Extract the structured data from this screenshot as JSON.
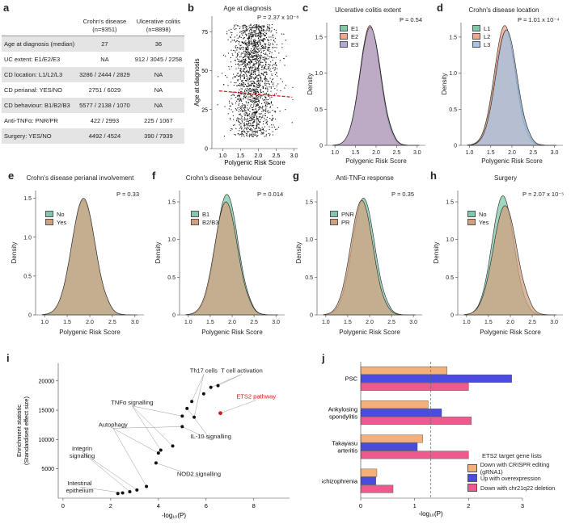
{
  "panels": {
    "a": {
      "letter": "a",
      "table": {
        "headers": [
          "",
          "Crohn's disease\n(n=9351)",
          "Ulcerative colitis\n(n=8898)"
        ],
        "header_lines": [
          [
            "Crohn's disease",
            "(n=9351)"
          ],
          [
            "Ulcerative colitis",
            "(n=8898)"
          ]
        ],
        "rows": [
          [
            "Age at diagnosis (median)",
            "27",
            "36"
          ],
          [
            "UC extent: E1/E2/E3",
            "NA",
            "912 / 3045 / 2258"
          ],
          [
            "CD location: L1/L2/L3",
            "3286 / 2444 / 2829",
            "NA"
          ],
          [
            "CD perianal: YES/NO",
            "2751 / 6029",
            "NA"
          ],
          [
            "CD behaviour: B1/B2/B3",
            "5577 / 2138 / 1070",
            "NA"
          ],
          [
            "Anti-TNFα: PNR/PR",
            "422 / 2993",
            "225 / 1067"
          ],
          [
            "Surgery: YES/NO",
            "4492 / 4524",
            "390 / 7939"
          ]
        ]
      }
    },
    "b": {
      "letter": "b",
      "title": "Age at diagnosis",
      "pvalue": "P = 2.37 x 10⁻⁸",
      "xlabel": "Polygenic Risk Score",
      "ylabel": "Age at diagnosis"
    },
    "c": {
      "letter": "c",
      "title": "Ulcerative colitis extent",
      "pvalue": "P = 0.54",
      "xlabel": "Polygenic Risk Score",
      "ylabel": "Density",
      "legend": [
        "E1",
        "E2",
        "E3"
      ]
    },
    "d": {
      "letter": "d",
      "title": "Crohn's disease location",
      "pvalue": "P = 1.01 x 10⁻⁴",
      "xlabel": "Polygenic Risk Score",
      "ylabel": "Density",
      "legend": [
        "L1",
        "L2",
        "L3"
      ]
    },
    "e": {
      "letter": "e",
      "title": "Crohn's disease perianal involvement",
      "pvalue": "P = 0.33",
      "xlabel": "Polygenic Risk Score",
      "ylabel": "Density",
      "legend": [
        "No",
        "Yes"
      ]
    },
    "f": {
      "letter": "f",
      "title": "Crohn's disease behaviour",
      "pvalue": "P = 0.014",
      "xlabel": "Polygenic Risk Score",
      "ylabel": "Density",
      "legend": [
        "B1",
        "B2/B3"
      ]
    },
    "g": {
      "letter": "g",
      "title": "Anti-TNFα response",
      "pvalue": "P = 0.35",
      "xlabel": "Polygenic Risk Score",
      "ylabel": "Density",
      "legend": [
        "PNR",
        "PR"
      ]
    },
    "h": {
      "letter": "h",
      "title": "Surgery",
      "pvalue": "P = 2.07 x 10⁻⁵",
      "xlabel": "Polygenic Risk Score",
      "ylabel": "Density",
      "legend": [
        "No",
        "Yes"
      ]
    },
    "i": {
      "letter": "i",
      "xlabel": "-log₁₀(P)",
      "ylabel": "Enrichment statistic\n(Standardised effect size)",
      "ylabel_lines": [
        "Enrichment statistic",
        "(Standardised effect size)"
      ]
    },
    "j": {
      "letter": "j",
      "xlabel": "-log₁₀(P)",
      "legend_title": "ETS2 target gene lists"
    }
  },
  "colors": {
    "green": "#7fc8a9",
    "orange": "#f0a78a",
    "purple": "#b3a8d4",
    "blue": "#a9c2e6",
    "tan": "#cfa17f",
    "red": "#d11a1a",
    "bar_orange": "#f3b07a",
    "bar_blue": "#4b4be0",
    "bar_pink": "#ee5a8e"
  },
  "chart_data": [
    {
      "id": "b",
      "type": "scatter",
      "title": "Age at diagnosis",
      "xlabel": "Polygenic Risk Score",
      "ylabel": "Age at diagnosis",
      "xlim": [
        0.7,
        3.1
      ],
      "ylim": [
        0,
        85
      ],
      "xticks": [
        "1.0",
        "1.5",
        "2.0",
        "2.5",
        "3.0"
      ],
      "yticks": [
        "0",
        "25",
        "50",
        "75"
      ],
      "n_points": 1800,
      "center_x": 1.85,
      "sd_x": 0.3,
      "trendline": {
        "x": [
          0.9,
          2.95
        ],
        "y": [
          37,
          33
        ],
        "color": "#d11a1a",
        "style": "dashed"
      },
      "annotation": "P = 2.37 x 10⁻⁸"
    },
    {
      "id": "c",
      "type": "area",
      "title": "Ulcerative colitis extent",
      "xlim": [
        0.8,
        3.2
      ],
      "ylim": [
        0,
        1.7
      ],
      "xticks": [
        "1.0",
        "1.5",
        "2.0",
        "2.5",
        "3.0"
      ],
      "yticks": [
        "0",
        "0.5",
        "1.0",
        "1.5"
      ],
      "series": [
        {
          "name": "E1",
          "peak": 1.87,
          "height": 1.62,
          "sd": 0.25,
          "color": "#7fc8a9"
        },
        {
          "name": "E2",
          "peak": 1.85,
          "height": 1.66,
          "sd": 0.245,
          "color": "#f0a78a"
        },
        {
          "name": "E3",
          "peak": 1.86,
          "height": 1.64,
          "sd": 0.25,
          "color": "#b3a8d4"
        }
      ]
    },
    {
      "id": "d",
      "type": "area",
      "title": "Crohn's disease location",
      "xlim": [
        0.8,
        3.2
      ],
      "ylim": [
        0,
        1.7
      ],
      "xticks": [
        "1.0",
        "1.5",
        "2.0",
        "2.5",
        "3.0"
      ],
      "yticks": [
        "0",
        "0.5",
        "1.0",
        "1.5"
      ],
      "series": [
        {
          "name": "L1",
          "peak": 1.85,
          "height": 1.58,
          "sd": 0.255,
          "color": "#7fc8a9"
        },
        {
          "name": "L2",
          "peak": 1.83,
          "height": 1.66,
          "sd": 0.245,
          "color": "#f0a78a"
        },
        {
          "name": "L3",
          "peak": 1.87,
          "height": 1.6,
          "sd": 0.25,
          "color": "#a9c2e6"
        }
      ]
    },
    {
      "id": "e",
      "type": "area",
      "title": "Crohn's disease perianal involvement",
      "xlim": [
        0.8,
        3.2
      ],
      "ylim": [
        0,
        1.6
      ],
      "xticks": [
        "1.0",
        "1.5",
        "2.0",
        "2.5",
        "3.0"
      ],
      "yticks": [
        "0",
        "0.5",
        "1.0",
        "1.5"
      ],
      "series": [
        {
          "name": "No",
          "peak": 1.86,
          "height": 1.48,
          "sd": 0.26,
          "color": "#7fc8a9"
        },
        {
          "name": "Yes",
          "peak": 1.86,
          "height": 1.5,
          "sd": 0.26,
          "color": "#cfa17f"
        }
      ]
    },
    {
      "id": "f",
      "type": "area",
      "title": "Crohn's disease behaviour",
      "xlim": [
        0.8,
        3.2
      ],
      "ylim": [
        0,
        1.65
      ],
      "xticks": [
        "1.0",
        "1.5",
        "2.0",
        "2.5",
        "3.0"
      ],
      "yticks": [
        "0",
        "0.5",
        "1.0",
        "1.5"
      ],
      "series": [
        {
          "name": "B1",
          "peak": 1.88,
          "height": 1.6,
          "sd": 0.255,
          "color": "#7fc8a9"
        },
        {
          "name": "B2/B3",
          "peak": 1.86,
          "height": 1.5,
          "sd": 0.26,
          "color": "#cfa17f"
        }
      ]
    },
    {
      "id": "g",
      "type": "area",
      "title": "Anti-TNFα response",
      "xlim": [
        0.8,
        3.2
      ],
      "ylim": [
        0,
        1.65
      ],
      "xticks": [
        "1.0",
        "1.5",
        "2.0",
        "2.5",
        "3.0"
      ],
      "yticks": [
        "0",
        "0.5",
        "1.0",
        "1.5"
      ],
      "series": [
        {
          "name": "PNR",
          "peak": 1.86,
          "height": 1.55,
          "sd": 0.255,
          "color": "#7fc8a9"
        },
        {
          "name": "PR",
          "peak": 1.82,
          "height": 1.52,
          "sd": 0.255,
          "color": "#cfa17f"
        }
      ]
    },
    {
      "id": "h",
      "type": "area",
      "title": "Surgery",
      "xlim": [
        0.8,
        3.2
      ],
      "ylim": [
        0,
        1.65
      ],
      "xticks": [
        "1.0",
        "1.5",
        "2.0",
        "2.5",
        "3.0"
      ],
      "yticks": [
        "0",
        "0.5",
        "1.0",
        "1.5"
      ],
      "series": [
        {
          "name": "No",
          "peak": 1.83,
          "height": 1.58,
          "sd": 0.25,
          "color": "#7fc8a9"
        },
        {
          "name": "Yes",
          "peak": 1.88,
          "height": 1.45,
          "sd": 0.27,
          "color": "#cfa17f"
        }
      ]
    },
    {
      "id": "i",
      "type": "scatter",
      "xlabel": "-log₁₀(P)",
      "ylabel": "Enrichment statistic (Standardised effect size)",
      "xlim": [
        -0.2,
        9.5
      ],
      "ylim": [
        0,
        23000
      ],
      "xticks": [
        "0",
        "2",
        "4",
        "6",
        "8"
      ],
      "yticks": [
        "5000",
        "10000",
        "15000",
        "20000"
      ],
      "points": [
        {
          "x": 2.3,
          "y": 800,
          "highlight": false
        },
        {
          "x": 2.5,
          "y": 900,
          "highlight": false
        },
        {
          "x": 2.8,
          "y": 1100,
          "highlight": false
        },
        {
          "x": 3.1,
          "y": 1400,
          "highlight": false
        },
        {
          "x": 3.5,
          "y": 2000,
          "highlight": false
        },
        {
          "x": 3.9,
          "y": 6000,
          "highlight": false
        },
        {
          "x": 4.0,
          "y": 7700,
          "highlight": false
        },
        {
          "x": 4.1,
          "y": 8200,
          "highlight": false
        },
        {
          "x": 4.6,
          "y": 8900,
          "highlight": false
        },
        {
          "x": 5.0,
          "y": 12200,
          "highlight": false
        },
        {
          "x": 5.0,
          "y": 14000,
          "highlight": false
        },
        {
          "x": 5.2,
          "y": 15300,
          "highlight": false
        },
        {
          "x": 5.4,
          "y": 16500,
          "highlight": false
        },
        {
          "x": 5.5,
          "y": 13800,
          "highlight": false
        },
        {
          "x": 5.9,
          "y": 17800,
          "highlight": false
        },
        {
          "x": 6.2,
          "y": 18900,
          "highlight": false
        },
        {
          "x": 6.5,
          "y": 19200,
          "highlight": false
        },
        {
          "x": 6.6,
          "y": 14500,
          "highlight": true
        }
      ],
      "annotations": [
        {
          "text": "Th17 cells",
          "x": 5.9,
          "y": 21400
        },
        {
          "text": "T cell activation",
          "x": 7.5,
          "y": 21400
        },
        {
          "text": "ETS2 pathway",
          "x": 8.1,
          "y": 17000,
          "highlight": true
        },
        {
          "text": "TNFα signalling",
          "x": 2.9,
          "y": 16000
        },
        {
          "text": "Autophagy",
          "x": 2.1,
          "y": 12200
        },
        {
          "text": "IL-10 signalling",
          "x": 6.2,
          "y": 10200
        },
        {
          "text": "Integrin signalling",
          "x": 0.8,
          "y": 8100
        },
        {
          "text": "NOD2 signalling",
          "x": 5.7,
          "y": 3800
        },
        {
          "text": "Intestinal epithelium",
          "x": 0.7,
          "y": 2200
        }
      ]
    },
    {
      "id": "j",
      "type": "bar",
      "orientation": "horizontal",
      "xlabel": "-log₁₀(P)",
      "xlim": [
        0,
        3.0
      ],
      "xticks": [
        "0",
        "1",
        "2",
        "3"
      ],
      "threshold": 1.3,
      "categories": [
        "PSC",
        "Ankylosing spondylitis",
        "Takayasu arteritis",
        "Schizophrenia"
      ],
      "category_lines": [
        [
          "PSC"
        ],
        [
          "Ankylosing",
          "spondylitis"
        ],
        [
          "Takayasu",
          "arteritis"
        ],
        [
          "Schizophrenia"
        ]
      ],
      "series": [
        {
          "name": "Down with CRISPR editing (gRNA1)",
          "values": [
            1.6,
            1.25,
            1.15,
            0.3
          ],
          "color": "#f3b07a"
        },
        {
          "name": "Up with overexpression",
          "values": [
            2.8,
            1.5,
            1.05,
            0.28
          ],
          "color": "#4b4be0"
        },
        {
          "name": "Down with chr21q22 deletion",
          "values": [
            2.0,
            2.05,
            2.0,
            0.6
          ],
          "color": "#ee5a8e"
        }
      ]
    }
  ]
}
